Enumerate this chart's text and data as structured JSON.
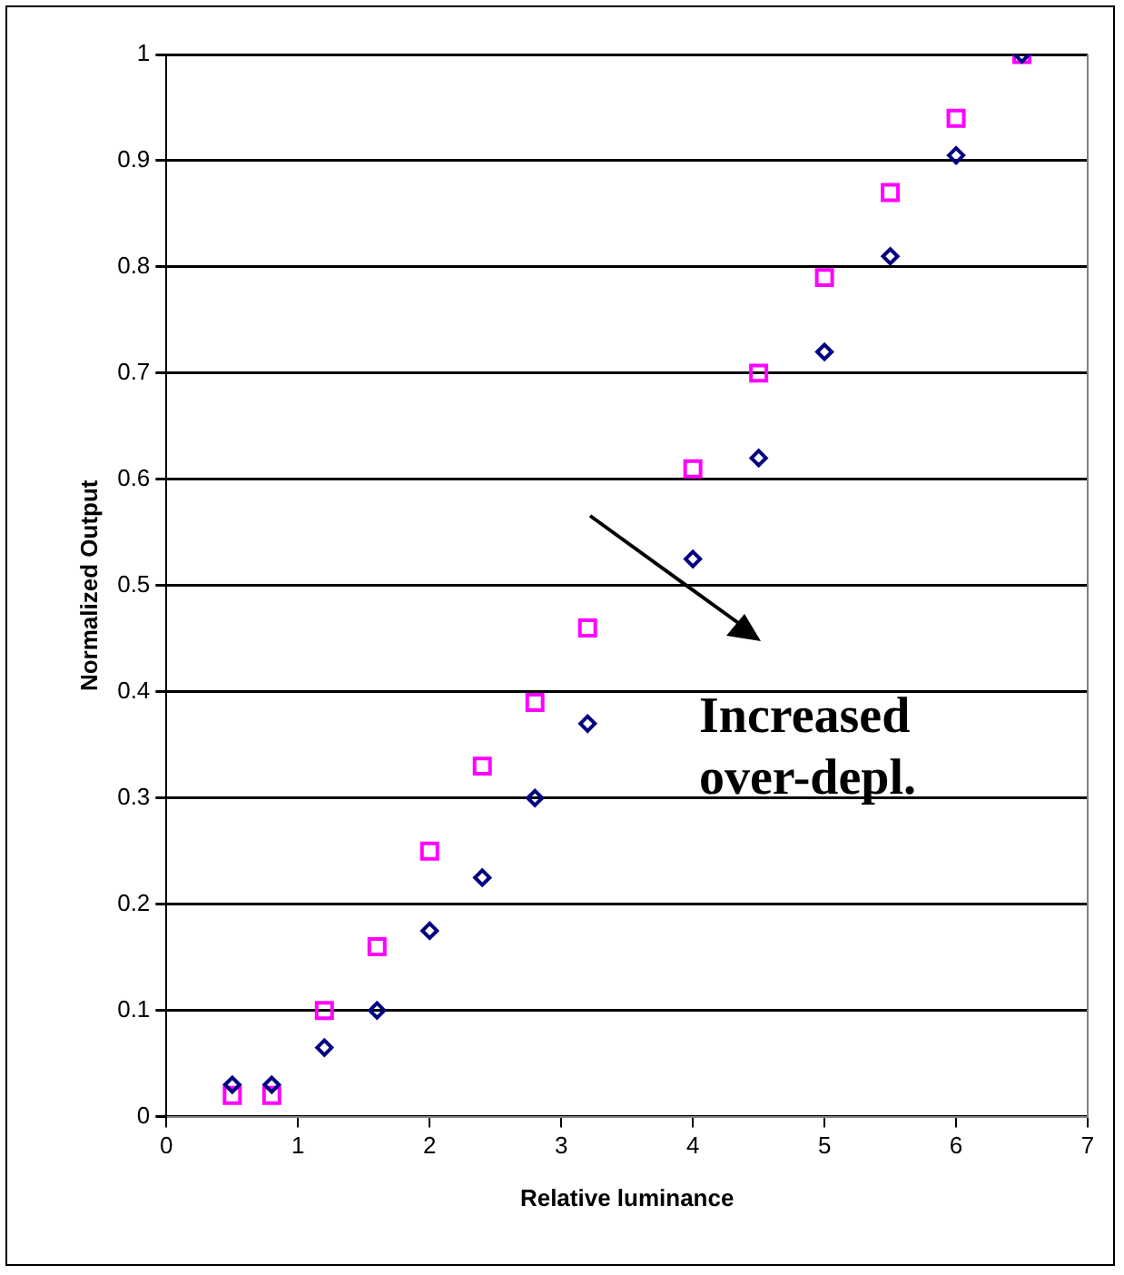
{
  "chart_data": {
    "type": "scatter",
    "xlabel": "Relative luminance",
    "ylabel": "Normalized Output",
    "x": [
      0.5,
      0.8,
      1.2,
      1.6,
      2.0,
      2.4,
      2.8,
      3.2,
      4.0,
      4.5,
      5.0,
      5.5,
      6.0,
      6.5
    ],
    "series": [
      {
        "color": "#ff00ff",
        "marker": "square",
        "values": [
          0.02,
          0.02,
          0.1,
          0.16,
          0.25,
          0.33,
          0.39,
          0.46,
          0.61,
          0.7,
          0.79,
          0.87,
          0.94,
          1.0
        ]
      },
      {
        "color": "#000080",
        "marker": "diamond",
        "values": [
          0.03,
          0.03,
          0.065,
          0.1,
          0.175,
          0.225,
          0.3,
          0.37,
          0.525,
          0.62,
          0.72,
          0.81,
          0.905,
          1.0
        ]
      }
    ],
    "xlim": [
      0,
      7
    ],
    "xticks": [
      0,
      1,
      2,
      3,
      4,
      5,
      6,
      7
    ],
    "ylim": [
      0,
      1
    ],
    "yticks": [
      0,
      0.1,
      0.2,
      0.3,
      0.4,
      0.5,
      0.6,
      0.7,
      0.8,
      0.9,
      1
    ],
    "grid": "y",
    "legend": false,
    "annotations": [
      "Increased over-depl."
    ]
  }
}
